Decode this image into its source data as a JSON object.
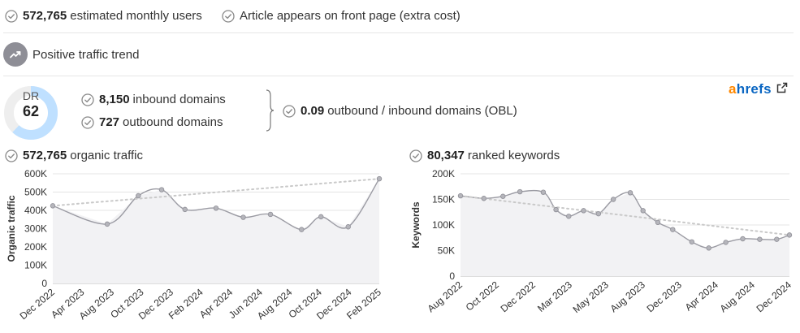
{
  "summary": {
    "users_value": "572,765",
    "users_label": "estimated monthly users",
    "front_page_label": "Article appears on front page (extra cost)"
  },
  "trend": {
    "label": "Positive traffic trend",
    "icon": "trending-up-icon"
  },
  "dr": {
    "label": "DR",
    "value": "62",
    "value_number": 62,
    "max": 100
  },
  "domains": {
    "inbound_value": "8,150",
    "inbound_label": "inbound domains",
    "outbound_value": "727",
    "outbound_label": "outbound domains",
    "obl_value": "0.09",
    "obl_label": "outbound / inbound domains (OBL)"
  },
  "brand": {
    "part1": "a",
    "part2": "hrefs",
    "icon": "external-link-icon"
  },
  "colors": {
    "ring": "#bfe0ff",
    "ring_bg": "#eeeeee",
    "line": "#9b9ba3",
    "trendline": "#c9c9c9",
    "area": "#f2f2f4",
    "brand_orange": "#ff8800",
    "brand_blue": "#0a66c2"
  },
  "organic": {
    "value": "572,765",
    "label": "organic traffic"
  },
  "keywords": {
    "value": "80,347",
    "label": "ranked keywords"
  },
  "chart_data": [
    {
      "type": "area",
      "ylabel": "Organic traffic",
      "ylim": [
        0,
        600000
      ],
      "yticks": [
        0,
        100000,
        200000,
        300000,
        400000,
        500000,
        600000
      ],
      "ytick_labels": [
        "0",
        "100K",
        "200K",
        "300K",
        "400K",
        "500K",
        "600K"
      ],
      "xtick_labels": [
        "Dec 2022",
        "Apr 2023",
        "Aug 2023",
        "Oct 2023",
        "Dec 2023",
        "Feb 2024",
        "Apr 2024",
        "Jun 2024",
        "Aug 2024",
        "Oct 2024",
        "Dec 2024",
        "Feb 2025"
      ],
      "x": [
        0,
        1.4,
        2.2,
        2.8,
        3.4,
        4.2,
        4.9,
        5.6,
        6.4,
        6.9,
        7.6,
        8.4
      ],
      "values": [
        425000,
        325000,
        480000,
        513000,
        405000,
        412000,
        362000,
        378000,
        295000,
        365000,
        310000,
        572765
      ],
      "trendline": [
        425000,
        572765
      ],
      "grid": true
    },
    {
      "type": "area",
      "ylabel": "Keywords",
      "ylim": [
        0,
        200000
      ],
      "yticks": [
        0,
        50000,
        100000,
        150000,
        200000
      ],
      "ytick_labels": [
        "0",
        "50K",
        "100K",
        "150K",
        "200K"
      ],
      "xtick_labels": [
        "Aug 2022",
        "Oct 2022",
        "Dec 2022",
        "Mar 2023",
        "May 2023",
        "Aug 2023",
        "Dec 2023",
        "Apr 2024",
        "Aug 2024",
        "Dec 2024"
      ],
      "x": [
        0,
        0.55,
        1.0,
        1.4,
        1.95,
        2.25,
        2.55,
        2.9,
        3.25,
        3.6,
        4.0,
        4.3,
        4.65,
        5.0,
        5.45,
        5.85,
        6.25,
        6.65,
        7.05,
        7.45,
        7.75
      ],
      "values": [
        157000,
        152000,
        156000,
        165000,
        164000,
        130000,
        117000,
        128000,
        122000,
        150000,
        163000,
        128000,
        105000,
        91000,
        67000,
        55000,
        66000,
        73000,
        72000,
        72000,
        80347
      ],
      "trendline": [
        157000,
        80347
      ],
      "grid": true
    }
  ]
}
